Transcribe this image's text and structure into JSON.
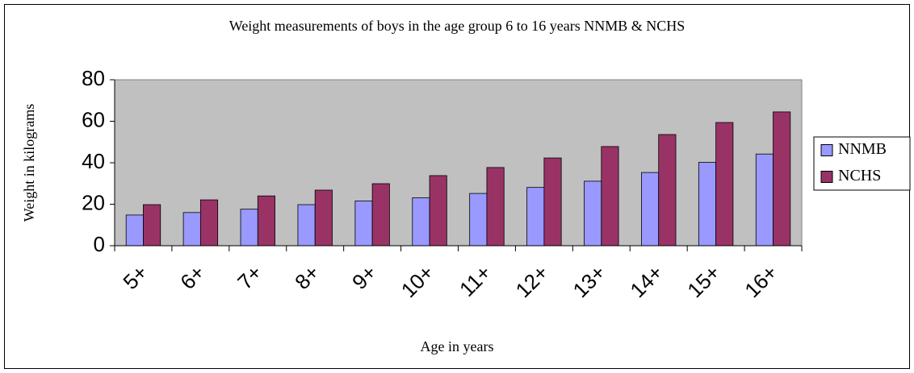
{
  "chart_data": {
    "type": "bar",
    "title": "Weight measurements of boys in the age group 6 to 16 years NNMB & NCHS",
    "x_label": "Age in years",
    "y_label": "Weight in kilograms",
    "categories": [
      "5+",
      "6+",
      "7+",
      "8+",
      "9+",
      "10+",
      "11+",
      "12+",
      "13+",
      "14+",
      "15+",
      "16+"
    ],
    "series": [
      {
        "name": "NNMB",
        "color": "#9999ff",
        "values": [
          14.8,
          16,
          17.6,
          19.8,
          21.6,
          23.1,
          25.2,
          28.1,
          31.1,
          35.3,
          40.2,
          44.2
        ]
      },
      {
        "name": "NCHS",
        "color": "#993366",
        "values": [
          19.8,
          22.1,
          24,
          26.8,
          29.9,
          33.8,
          37.7,
          42.3,
          47.8,
          53.6,
          59.4,
          64.5
        ]
      }
    ],
    "ylim": [
      0,
      80
    ],
    "yticks": [
      0,
      20,
      40,
      60,
      80
    ],
    "grid": false,
    "legend": "right"
  }
}
